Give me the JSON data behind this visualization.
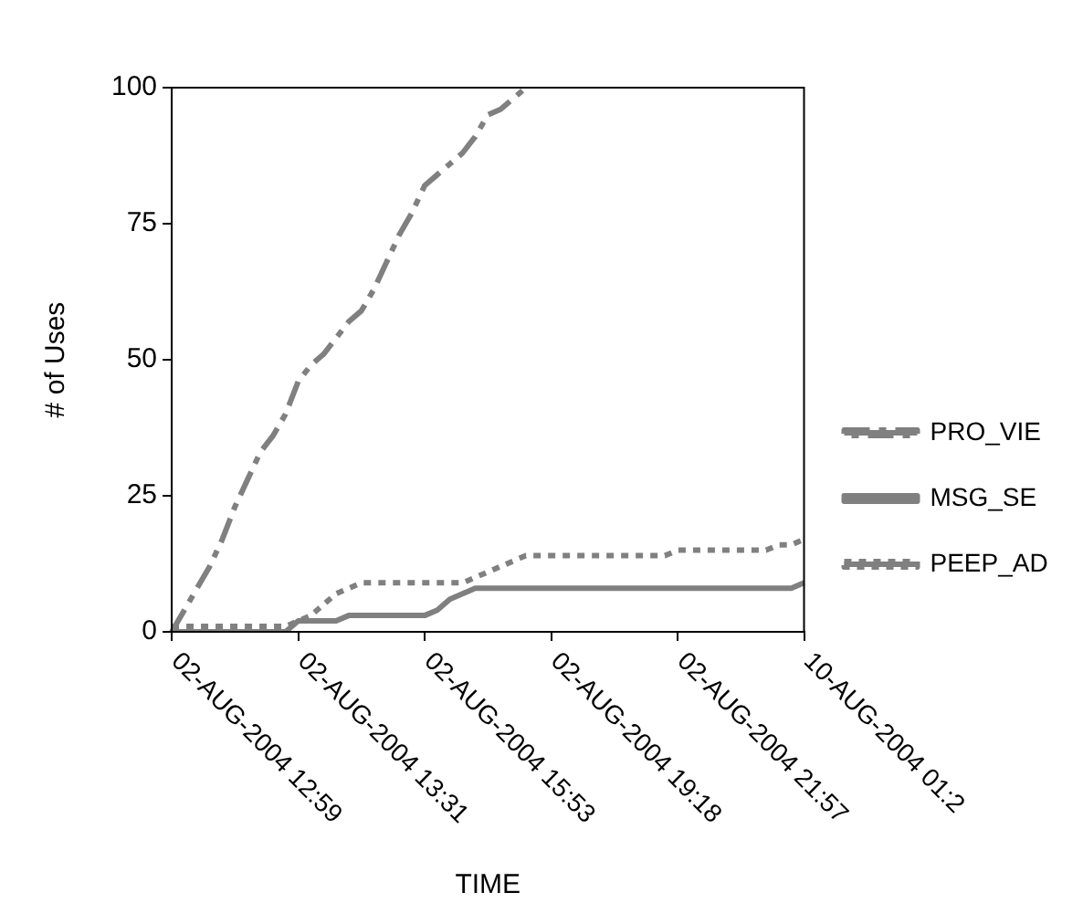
{
  "chart_data": {
    "type": "line",
    "xlabel": "TIME",
    "ylabel": "# of Uses",
    "categories": [
      "02-AUG-2004 12:59",
      null,
      null,
      null,
      null,
      null,
      null,
      null,
      null,
      null,
      "02-AUG-2004 13:31",
      null,
      null,
      null,
      null,
      null,
      null,
      null,
      null,
      null,
      "02-AUG-2004 15:53",
      null,
      null,
      null,
      null,
      null,
      null,
      null,
      null,
      null,
      "02-AUG-2004 19:18",
      null,
      null,
      null,
      null,
      null,
      null,
      null,
      null,
      null,
      "02-AUG-2004 21:57",
      null,
      null,
      null,
      null,
      null,
      null,
      null,
      null,
      null,
      "10-AUG-2004 01:2"
    ],
    "series": [
      {
        "name": "PRO_VIE",
        "color": "#808080",
        "line_style": "dashed",
        "values": [
          0,
          4,
          8,
          12,
          17,
          23,
          28,
          33,
          36,
          40,
          46,
          49,
          51,
          54,
          57,
          59,
          63,
          68,
          73,
          77,
          82,
          84,
          86,
          88,
          91,
          95,
          96,
          98,
          100,
          null,
          null,
          null,
          null,
          null,
          null,
          null,
          null,
          null,
          null,
          null,
          null,
          null,
          null,
          null,
          null,
          null,
          null,
          null,
          null,
          null,
          null
        ]
      },
      {
        "name": "MSG_SE",
        "color": "#808080",
        "line_style": "solid",
        "values": [
          0,
          0,
          0,
          0,
          0,
          0,
          0,
          0,
          0,
          0,
          2,
          2,
          2,
          2,
          3,
          3,
          3,
          3,
          3,
          3,
          3,
          4,
          6,
          7,
          8,
          8,
          8,
          8,
          8,
          8,
          8,
          8,
          8,
          8,
          8,
          8,
          8,
          8,
          8,
          8,
          8,
          8,
          8,
          8,
          8,
          8,
          8,
          8,
          8,
          8,
          9
        ]
      },
      {
        "name": "PEEP_AD",
        "color": "#808080",
        "line_style": "dotted",
        "values": [
          1,
          1,
          1,
          1,
          1,
          1,
          1,
          1,
          1,
          1,
          2,
          3,
          5,
          7,
          8,
          9,
          9,
          9,
          9,
          9,
          9,
          9,
          9,
          9,
          10,
          11,
          12,
          13,
          14,
          14,
          14,
          14,
          14,
          14,
          14,
          14,
          14,
          14,
          14,
          14,
          15,
          15,
          15,
          15,
          15,
          15,
          15,
          15,
          16,
          16,
          17
        ]
      }
    ],
    "ylim": [
      0,
      100
    ],
    "yticks": [
      0,
      25,
      50,
      75,
      100
    ],
    "grid": false,
    "legend": "right",
    "marker": "none"
  }
}
